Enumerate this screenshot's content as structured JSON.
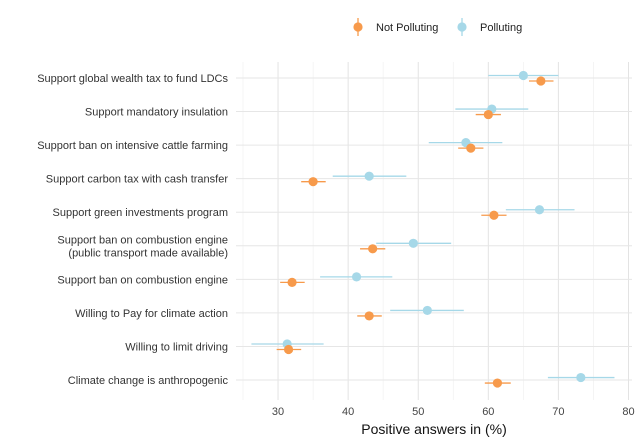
{
  "chart_data": {
    "type": "scatter",
    "subtype": "dot-and-whisker",
    "xlabel": "Positive answers in (%)",
    "ylabel": "",
    "xlim": [
      24,
      80.5
    ],
    "xticks": [
      30,
      40,
      50,
      60,
      70,
      80
    ],
    "grid": true,
    "legend_position": "top",
    "categories": [
      [
        "Support global wealth tax to fund LDCs"
      ],
      [
        "Support mandatory insulation"
      ],
      [
        "Support ban on intensive cattle farming"
      ],
      [
        "Support carbon tax with cash transfer"
      ],
      [
        "Support green investments program"
      ],
      [
        "Support ban on combustion engine",
        "(public transport made available)"
      ],
      [
        "Support ban on combustion engine"
      ],
      [
        "Willing to Pay for climate action"
      ],
      [
        "Willing to limit driving"
      ],
      [
        "Climate change is anthropogenic"
      ]
    ],
    "series": [
      {
        "name": "Not Polluting",
        "color": "#F79A4B",
        "values": [
          67.5,
          60.0,
          57.5,
          35.0,
          60.8,
          43.5,
          32.0,
          43.0,
          31.5,
          61.3
        ],
        "ci_low": [
          65.8,
          58.2,
          55.7,
          33.3,
          59.0,
          41.7,
          30.3,
          41.3,
          29.8,
          59.5
        ],
        "ci_high": [
          69.3,
          61.8,
          59.3,
          36.8,
          62.6,
          45.3,
          33.8,
          44.8,
          33.3,
          63.2
        ]
      },
      {
        "name": "Polluting",
        "color": "#A6D8E8",
        "values": [
          65.0,
          60.5,
          56.8,
          43.0,
          67.3,
          49.3,
          41.2,
          51.3,
          31.3,
          73.2
        ],
        "ci_low": [
          60.0,
          55.3,
          51.5,
          37.8,
          62.5,
          44.0,
          36.0,
          46.0,
          26.2,
          68.5
        ],
        "ci_high": [
          70.0,
          65.7,
          62.0,
          48.3,
          72.3,
          54.7,
          46.3,
          56.5,
          36.5,
          78.0
        ]
      }
    ]
  }
}
